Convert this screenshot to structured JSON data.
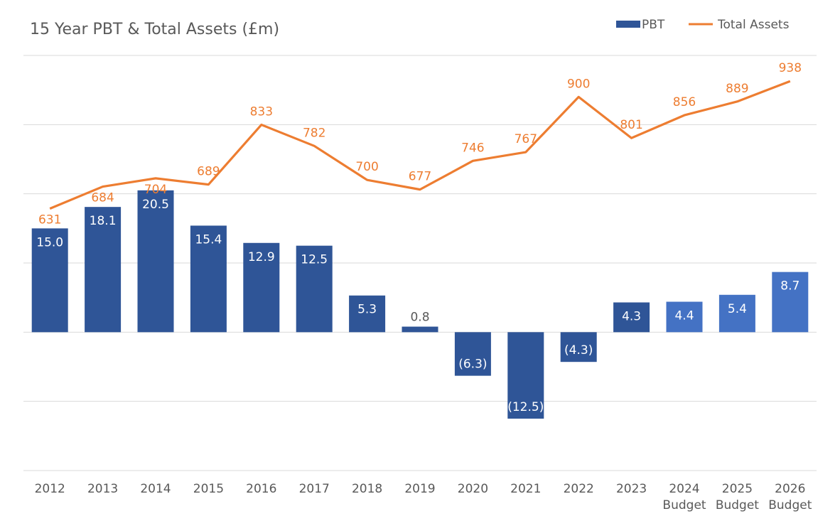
{
  "chart_data": {
    "type": "bar+line",
    "title": "15 Year PBT & Total Assets (£m)",
    "categories": [
      "2012",
      "2013",
      "2014",
      "2015",
      "2016",
      "2017",
      "2018",
      "2019",
      "2020",
      "2021",
      "2022",
      "2023",
      "2024",
      "2025",
      "2026"
    ],
    "category_sublabels": [
      "",
      "",
      "",
      "",
      "",
      "",
      "",
      "",
      "",
      "",
      "",
      "",
      "Budget",
      "Budget",
      "Budget"
    ],
    "series": [
      {
        "name": "PBT",
        "type": "bar",
        "axis": "left",
        "values": [
          15.0,
          18.1,
          20.5,
          15.4,
          12.9,
          12.5,
          5.3,
          0.8,
          -6.3,
          -12.5,
          -4.3,
          4.3,
          4.4,
          5.4,
          8.7
        ],
        "labels": [
          "15.0",
          "18.1",
          "20.5",
          "15.4",
          "12.9",
          "12.5",
          "5.3",
          "0.8",
          "(6.3)",
          "(12.5)",
          "(4.3)",
          "4.3",
          "4.4",
          "5.4",
          "8.7"
        ],
        "color": "#2f5597",
        "budget_color": "#4472c4"
      },
      {
        "name": "Total Assets",
        "type": "line",
        "axis": "right",
        "values": [
          631,
          684,
          704,
          689,
          833,
          782,
          700,
          677,
          746,
          767,
          900,
          801,
          856,
          889,
          938
        ],
        "labels": [
          "631",
          "684",
          "704",
          "689",
          "833",
          "782",
          "700",
          "677",
          "746",
          "767",
          "900",
          "801",
          "856",
          "889",
          "938"
        ],
        "color": "#ed7d31"
      }
    ],
    "y_left_range": [
      -20,
      40
    ],
    "y_right_range": [
      0,
      1000
    ],
    "grid": true,
    "legend": "top-right",
    "label_color_light": "#ffffff",
    "label_color_dark": "#595959",
    "text_color": "#595959",
    "grid_color": "#d9d9d9"
  }
}
